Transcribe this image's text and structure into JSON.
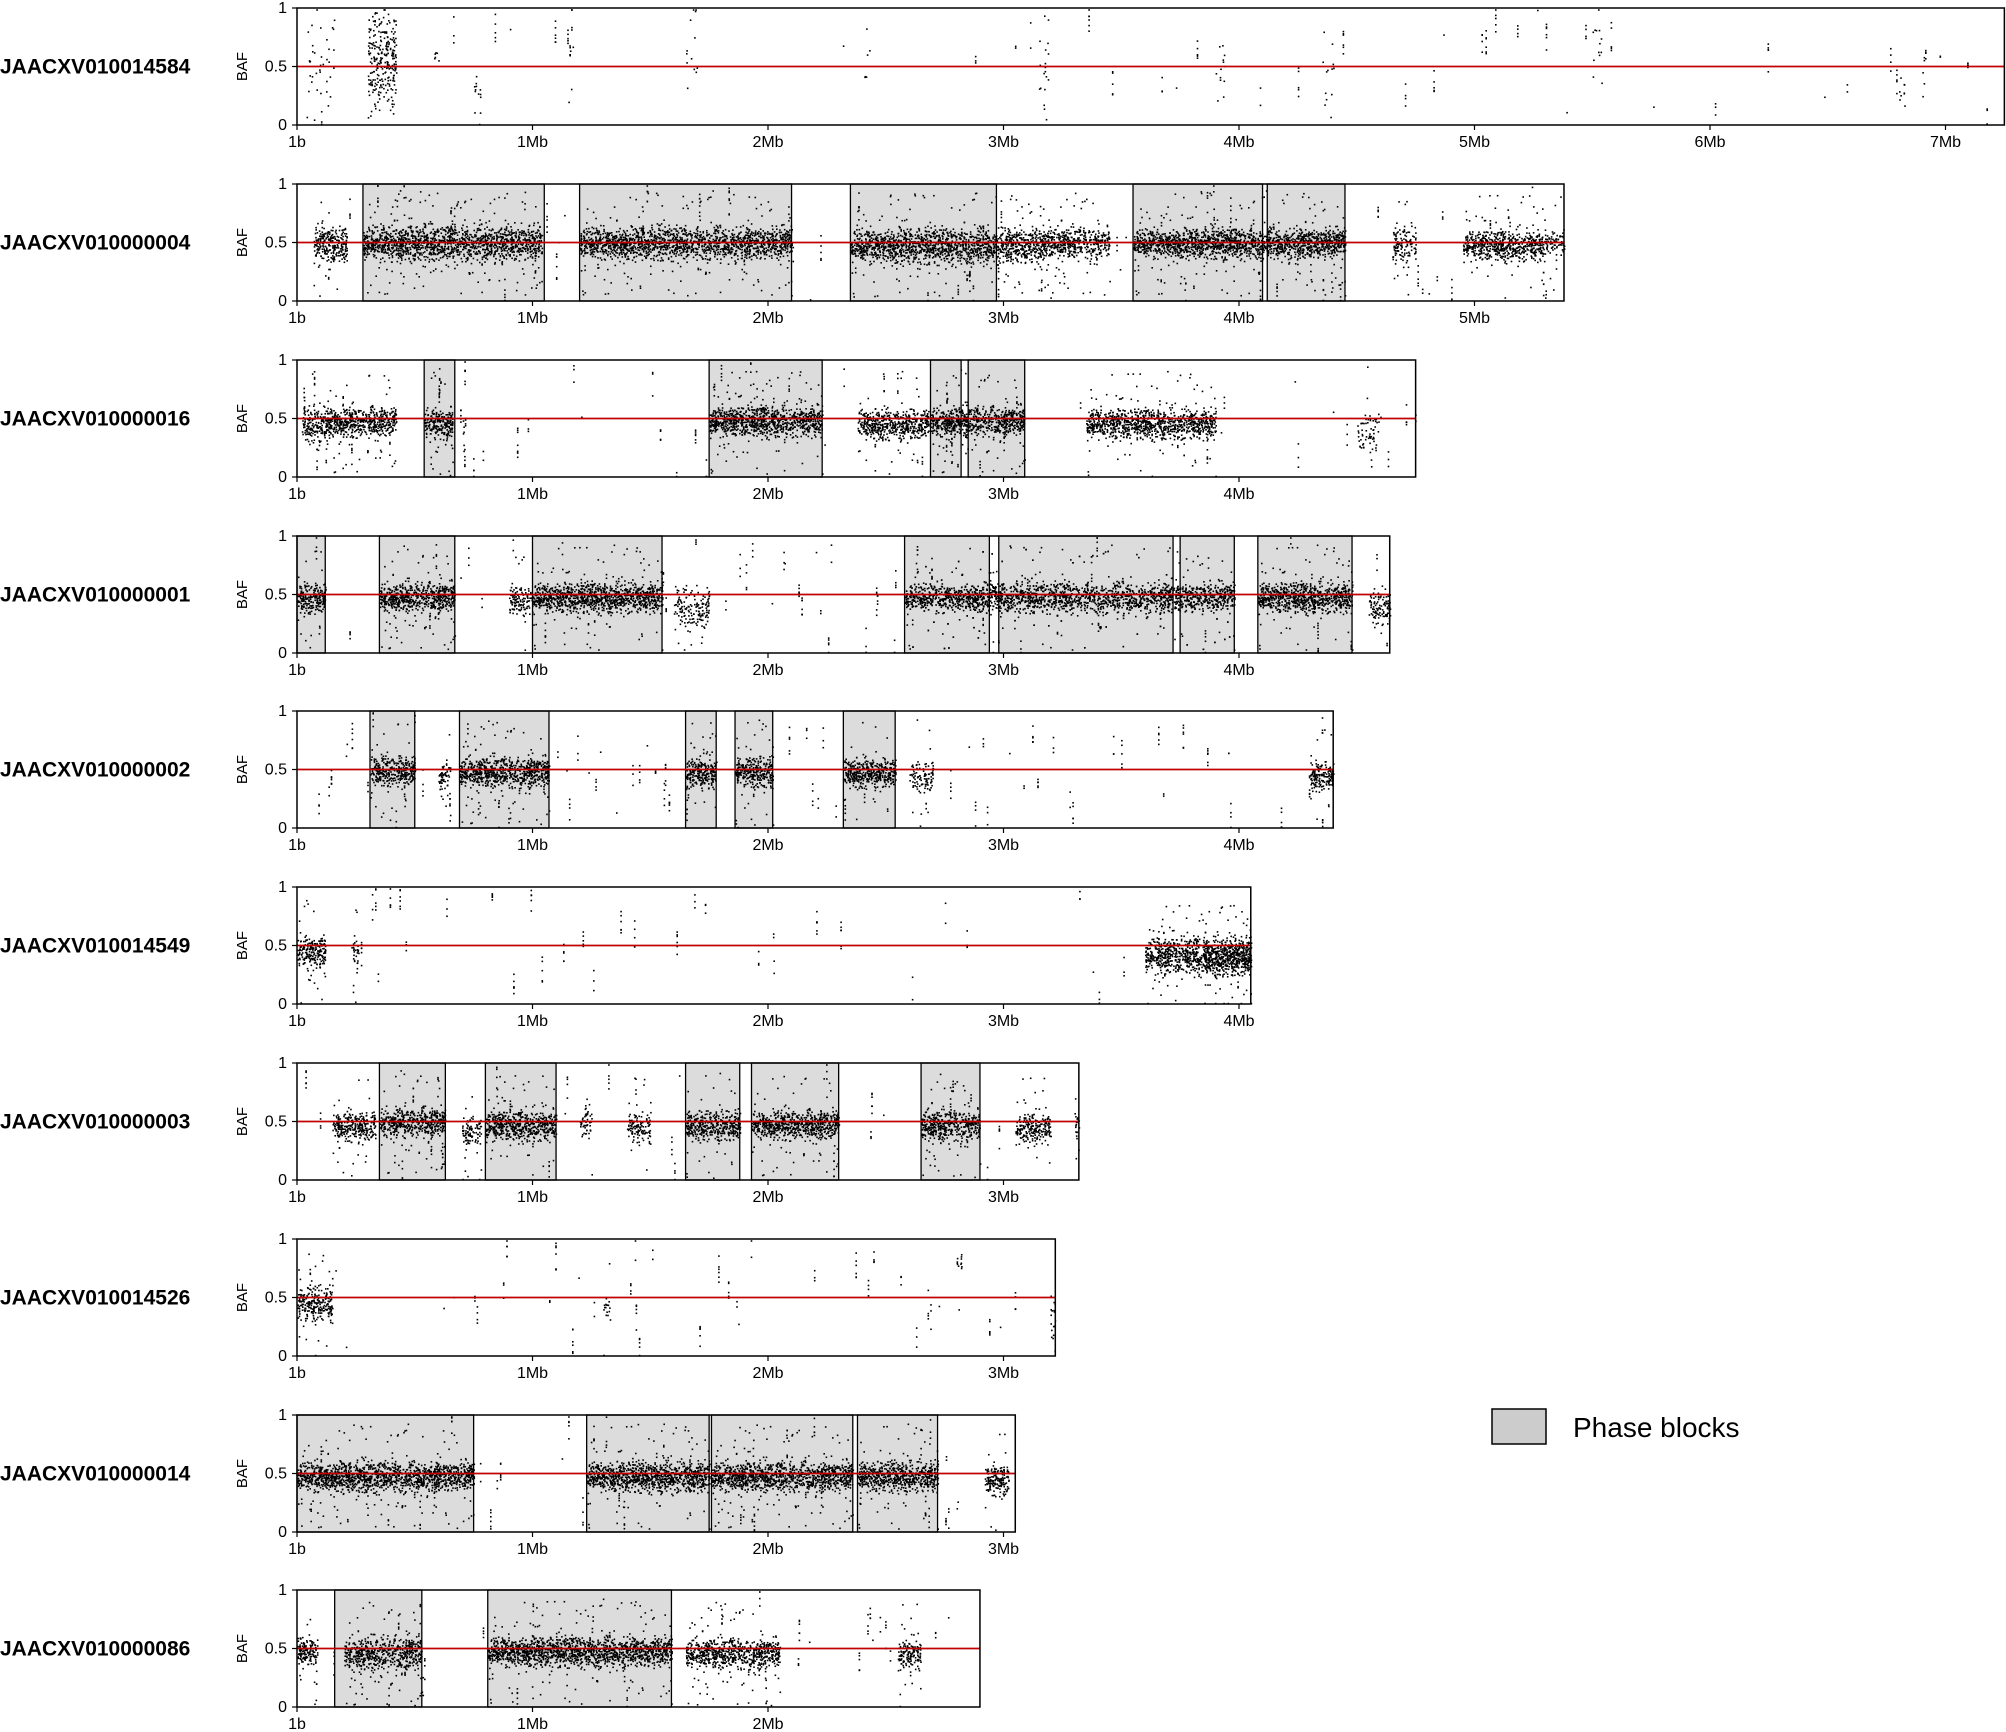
{
  "chart_data": {
    "type": "scatter",
    "ylabel": "BAF",
    "ylim": [
      0,
      1
    ],
    "yticks": [
      "0",
      "0.5",
      "1"
    ],
    "reference_line": {
      "y": 0.5,
      "color": "#c00000"
    },
    "phase_block_color": "#dcdcdc",
    "point_color": "#000000",
    "legend": {
      "label": "Phase blocks",
      "swatch_color": "#cccccc",
      "placement": "right"
    },
    "grid": false,
    "panels": [
      {
        "contig": "JAACXV010014584",
        "length_mb": 7.25,
        "xticks": [
          "1b",
          "1Mb",
          "2Mb",
          "3Mb",
          "4Mb",
          "5Mb",
          "6Mb",
          "7Mb"
        ],
        "phase_blocks": [],
        "clusters": [
          [
            0.3,
            0.12,
            0.55,
            0.3,
            1.0
          ],
          [
            0.04,
            0.12,
            0.5,
            0.35,
            0.15
          ],
          [
            0.58,
            0.02,
            0.6,
            0.1,
            0.15
          ],
          [
            0.75,
            0.03,
            0.3,
            0.15,
            0.2
          ],
          [
            1.15,
            0.02,
            0.55,
            0.25,
            0.12
          ],
          [
            1.65,
            0.05,
            0.65,
            0.3,
            0.12
          ],
          [
            2.4,
            0.03,
            0.5,
            0.3,
            0.1
          ],
          [
            3.15,
            0.04,
            0.5,
            0.35,
            0.2
          ],
          [
            3.9,
            0.04,
            0.45,
            0.25,
            0.15
          ],
          [
            4.35,
            0.05,
            0.5,
            0.3,
            0.12
          ],
          [
            5.5,
            0.04,
            0.7,
            0.3,
            0.15
          ],
          [
            6.8,
            0.03,
            0.35,
            0.2,
            0.1
          ]
        ],
        "sparse_density": 0.12
      },
      {
        "contig": "JAACXV010000004",
        "length_mb": 5.38,
        "xticks": [
          "1b",
          "1Mb",
          "2Mb",
          "3Mb",
          "4Mb",
          "5Mb"
        ],
        "phase_blocks": [
          [
            0.28,
            1.05
          ],
          [
            1.2,
            2.1
          ],
          [
            2.35,
            2.97
          ],
          [
            3.55,
            4.1
          ],
          [
            4.12,
            4.45
          ]
        ],
        "clusters": [
          [
            0.07,
            0.14,
            0.48,
            0.12,
            0.9
          ],
          [
            0.28,
            0.76,
            0.5,
            0.12,
            0.95
          ],
          [
            1.2,
            0.9,
            0.5,
            0.11,
            0.9
          ],
          [
            2.35,
            0.85,
            0.48,
            0.12,
            0.95
          ],
          [
            3.2,
            0.25,
            0.5,
            0.1,
            0.8
          ],
          [
            3.55,
            0.9,
            0.5,
            0.1,
            0.95
          ],
          [
            4.65,
            0.1,
            0.48,
            0.12,
            0.6
          ],
          [
            4.95,
            0.35,
            0.48,
            0.1,
            0.85
          ],
          [
            5.3,
            0.08,
            0.5,
            0.08,
            0.4
          ]
        ],
        "sparse_density": 0.3
      },
      {
        "contig": "JAACXV010000016",
        "length_mb": 4.75,
        "xticks": [
          "1b",
          "1Mb",
          "2Mb",
          "3Mb",
          "4Mb"
        ],
        "phase_blocks": [
          [
            0.54,
            0.67
          ],
          [
            1.75,
            2.23
          ],
          [
            2.69,
            2.82
          ],
          [
            2.85,
            3.09
          ]
        ],
        "clusters": [
          [
            0.02,
            0.12,
            0.46,
            0.12,
            0.8
          ],
          [
            0.12,
            0.3,
            0.48,
            0.1,
            0.9
          ],
          [
            0.54,
            0.12,
            0.46,
            0.1,
            0.9
          ],
          [
            1.75,
            0.48,
            0.48,
            0.1,
            0.95
          ],
          [
            2.38,
            0.3,
            0.46,
            0.1,
            0.85
          ],
          [
            2.69,
            0.4,
            0.48,
            0.1,
            0.9
          ],
          [
            3.35,
            0.55,
            0.46,
            0.1,
            0.85
          ],
          [
            4.5,
            0.1,
            0.4,
            0.2,
            0.3
          ]
        ],
        "sparse_density": 0.25
      },
      {
        "contig": "JAACXV010000001",
        "length_mb": 4.64,
        "xticks": [
          "1b",
          "1Mb",
          "2Mb",
          "3Mb",
          "4Mb"
        ],
        "phase_blocks": [
          [
            0.0,
            0.12
          ],
          [
            0.35,
            0.67
          ],
          [
            1.0,
            1.55
          ],
          [
            2.58,
            2.94
          ],
          [
            2.98,
            3.72
          ],
          [
            3.75,
            3.98
          ],
          [
            4.08,
            4.48
          ]
        ],
        "clusters": [
          [
            0.0,
            0.12,
            0.48,
            0.1,
            0.9
          ],
          [
            0.35,
            0.32,
            0.48,
            0.1,
            0.95
          ],
          [
            0.9,
            0.1,
            0.45,
            0.1,
            0.6
          ],
          [
            1.0,
            0.55,
            0.48,
            0.1,
            0.95
          ],
          [
            1.6,
            0.15,
            0.4,
            0.15,
            0.5
          ],
          [
            2.58,
            1.4,
            0.48,
            0.1,
            0.95
          ],
          [
            4.08,
            0.4,
            0.48,
            0.1,
            0.95
          ],
          [
            4.55,
            0.09,
            0.4,
            0.12,
            0.6
          ]
        ],
        "sparse_density": 0.25
      },
      {
        "contig": "JAACXV010000002",
        "length_mb": 4.4,
        "xticks": [
          "1b",
          "1Mb",
          "2Mb",
          "3Mb",
          "4Mb"
        ],
        "phase_blocks": [
          [
            0.31,
            0.5
          ],
          [
            0.69,
            1.07
          ],
          [
            1.65,
            1.78
          ],
          [
            1.86,
            2.02
          ],
          [
            2.32,
            2.54
          ]
        ],
        "clusters": [
          [
            0.31,
            0.19,
            0.5,
            0.1,
            0.9
          ],
          [
            0.6,
            0.05,
            0.45,
            0.1,
            0.6
          ],
          [
            0.69,
            0.38,
            0.48,
            0.1,
            0.95
          ],
          [
            1.65,
            0.13,
            0.48,
            0.1,
            0.9
          ],
          [
            1.86,
            0.16,
            0.48,
            0.1,
            0.9
          ],
          [
            2.32,
            0.22,
            0.48,
            0.1,
            0.9
          ],
          [
            2.6,
            0.1,
            0.45,
            0.1,
            0.5
          ],
          [
            4.3,
            0.1,
            0.45,
            0.1,
            0.8
          ]
        ],
        "sparse_density": 0.3
      },
      {
        "contig": "JAACXV010014549",
        "length_mb": 4.05,
        "xticks": [
          "1b",
          "1Mb",
          "2Mb",
          "3Mb",
          "4Mb"
        ],
        "phase_blocks": [],
        "clusters": [
          [
            0.0,
            0.12,
            0.45,
            0.12,
            0.85
          ],
          [
            0.23,
            0.03,
            0.45,
            0.1,
            0.5
          ],
          [
            3.6,
            0.45,
            0.42,
            0.12,
            0.9
          ],
          [
            3.85,
            0.2,
            0.4,
            0.12,
            0.8
          ]
        ],
        "sparse_density": 0.15
      },
      {
        "contig": "JAACXV010000003",
        "length_mb": 3.32,
        "xticks": [
          "1b",
          "1Mb",
          "2Mb",
          "3Mb"
        ],
        "phase_blocks": [
          [
            0.35,
            0.63
          ],
          [
            0.8,
            1.1
          ],
          [
            1.65,
            1.88
          ],
          [
            1.93,
            2.3
          ],
          [
            2.65,
            2.9
          ]
        ],
        "clusters": [
          [
            0.15,
            0.18,
            0.47,
            0.1,
            0.8
          ],
          [
            0.35,
            0.28,
            0.5,
            0.1,
            0.85
          ],
          [
            0.7,
            0.08,
            0.42,
            0.1,
            0.6
          ],
          [
            0.8,
            0.3,
            0.47,
            0.1,
            0.9
          ],
          [
            1.2,
            0.05,
            0.5,
            0.1,
            0.5
          ],
          [
            1.4,
            0.1,
            0.45,
            0.1,
            0.6
          ],
          [
            1.65,
            0.23,
            0.47,
            0.1,
            0.85
          ],
          [
            1.93,
            0.37,
            0.48,
            0.1,
            0.9
          ],
          [
            2.65,
            0.25,
            0.47,
            0.1,
            0.85
          ],
          [
            3.05,
            0.15,
            0.45,
            0.1,
            0.7
          ],
          [
            3.3,
            0.02,
            0.45,
            0.15,
            0.5
          ]
        ],
        "sparse_density": 0.2
      },
      {
        "contig": "JAACXV010014526",
        "length_mb": 3.22,
        "xticks": [
          "1b",
          "1Mb",
          "2Mb",
          "3Mb"
        ],
        "phase_blocks": [],
        "clusters": [
          [
            0.0,
            0.15,
            0.45,
            0.12,
            0.8
          ],
          [
            1.3,
            0.03,
            0.4,
            0.1,
            0.3
          ],
          [
            2.8,
            0.02,
            0.8,
            0.05,
            0.3
          ],
          [
            3.2,
            0.02,
            0.3,
            0.2,
            0.3
          ]
        ],
        "sparse_density": 0.2
      },
      {
        "contig": "JAACXV010000014",
        "length_mb": 3.05,
        "xticks": [
          "1b",
          "1Mb",
          "2Mb",
          "3Mb"
        ],
        "phase_blocks": [
          [
            0.0,
            0.75
          ],
          [
            1.23,
            1.75
          ],
          [
            1.76,
            2.36
          ],
          [
            2.38,
            2.72
          ]
        ],
        "clusters": [
          [
            0.0,
            0.75,
            0.48,
            0.1,
            0.95
          ],
          [
            1.23,
            0.52,
            0.48,
            0.1,
            0.95
          ],
          [
            1.76,
            0.6,
            0.48,
            0.1,
            0.95
          ],
          [
            2.38,
            0.34,
            0.48,
            0.1,
            0.9
          ],
          [
            2.92,
            0.1,
            0.45,
            0.1,
            0.8
          ]
        ],
        "sparse_density": 0.25
      },
      {
        "contig": "JAACXV010000086",
        "length_mb": 2.9,
        "xticks": [
          "1b",
          "1Mb",
          "2Mb"
        ],
        "phase_blocks": [
          [
            0.16,
            0.53
          ],
          [
            0.81,
            1.59
          ]
        ],
        "clusters": [
          [
            0.0,
            0.08,
            0.48,
            0.1,
            0.85
          ],
          [
            0.2,
            0.33,
            0.46,
            0.12,
            0.85
          ],
          [
            0.81,
            0.78,
            0.48,
            0.1,
            0.95
          ],
          [
            1.65,
            0.4,
            0.46,
            0.1,
            0.85
          ],
          [
            2.55,
            0.1,
            0.46,
            0.1,
            0.7
          ]
        ],
        "sparse_density": 0.25
      }
    ]
  }
}
